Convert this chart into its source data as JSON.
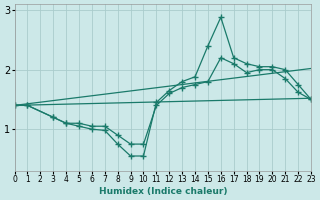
{
  "xlabel": "Humidex (Indice chaleur)",
  "bg_color": "#cce8e8",
  "grid_color": "#aacccc",
  "line_color": "#1a7a6a",
  "xlim": [
    0,
    23
  ],
  "ylim": [
    0.3,
    3.1
  ],
  "yticks": [
    1,
    2,
    3
  ],
  "xticks": [
    0,
    1,
    2,
    3,
    4,
    5,
    6,
    7,
    8,
    9,
    10,
    11,
    12,
    13,
    14,
    15,
    16,
    17,
    18,
    19,
    20,
    21,
    22,
    23
  ],
  "lines": [
    {
      "x": [
        0,
        1,
        3,
        4,
        5,
        6,
        7,
        8,
        9,
        10,
        11,
        12,
        13,
        14,
        15,
        16,
        17,
        18,
        19,
        20,
        21,
        22,
        23
      ],
      "y": [
        1.4,
        1.4,
        1.2,
        1.1,
        1.1,
        1.05,
        1.05,
        0.9,
        0.75,
        0.75,
        1.4,
        1.6,
        1.7,
        1.75,
        1.8,
        2.2,
        2.1,
        1.95,
        2.0,
        2.0,
        1.85,
        1.62,
        1.5
      ],
      "with_marker": true
    },
    {
      "x": [
        0,
        1,
        3,
        4,
        5,
        6,
        7,
        8,
        9,
        10,
        11,
        12,
        13,
        14,
        15,
        16,
        17,
        18,
        19,
        20,
        21,
        22,
        23
      ],
      "y": [
        1.4,
        1.4,
        1.2,
        1.1,
        1.05,
        1.0,
        0.98,
        0.75,
        0.55,
        0.55,
        1.45,
        1.65,
        1.8,
        1.88,
        2.4,
        2.88,
        2.2,
        2.1,
        2.05,
        2.05,
        2.0,
        1.75,
        1.5
      ],
      "with_marker": true
    },
    {
      "x": [
        0,
        23
      ],
      "y": [
        1.4,
        1.52
      ],
      "with_marker": false
    },
    {
      "x": [
        0,
        23
      ],
      "y": [
        1.4,
        2.02
      ],
      "with_marker": false
    }
  ]
}
